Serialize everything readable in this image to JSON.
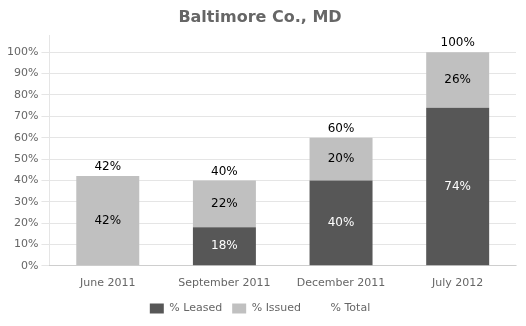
{
  "chart_data": {
    "type": "bar",
    "title": "Baltimore Co., MD",
    "categories": [
      "June 2011",
      "September 2011",
      "December 2011",
      "July 2012"
    ],
    "series": [
      {
        "name": "% Leased",
        "color": "#575757",
        "values": [
          0,
          18,
          40,
          74
        ],
        "value_labels": [
          null,
          "18%",
          "40%",
          "74%"
        ]
      },
      {
        "name": "% Issued",
        "color": "#c0c0c0",
        "values": [
          42,
          22,
          20,
          26
        ],
        "value_labels": [
          "42%",
          "22%",
          "20%",
          "26%"
        ]
      },
      {
        "name": "% Total",
        "type": "text",
        "values": [
          42,
          40,
          60,
          100
        ],
        "value_labels": [
          "42%",
          "40%",
          "60%",
          "100%"
        ]
      }
    ],
    "stacked": true,
    "data_labels": true,
    "ylim": [
      0,
      108
    ],
    "yticks": [
      {
        "value": 0,
        "label": "0%"
      },
      {
        "value": 10,
        "label": "10%"
      },
      {
        "value": 20,
        "label": "20%"
      },
      {
        "value": 30,
        "label": "30%"
      },
      {
        "value": 40,
        "label": "40%"
      },
      {
        "value": 50,
        "label": "50%"
      },
      {
        "value": 60,
        "label": "60%"
      },
      {
        "value": 70,
        "label": "70%"
      },
      {
        "value": 80,
        "label": "80%"
      },
      {
        "value": 90,
        "label": "90%"
      },
      {
        "value": 100,
        "label": "100%"
      }
    ],
    "grid": true,
    "legend": "bottom"
  }
}
